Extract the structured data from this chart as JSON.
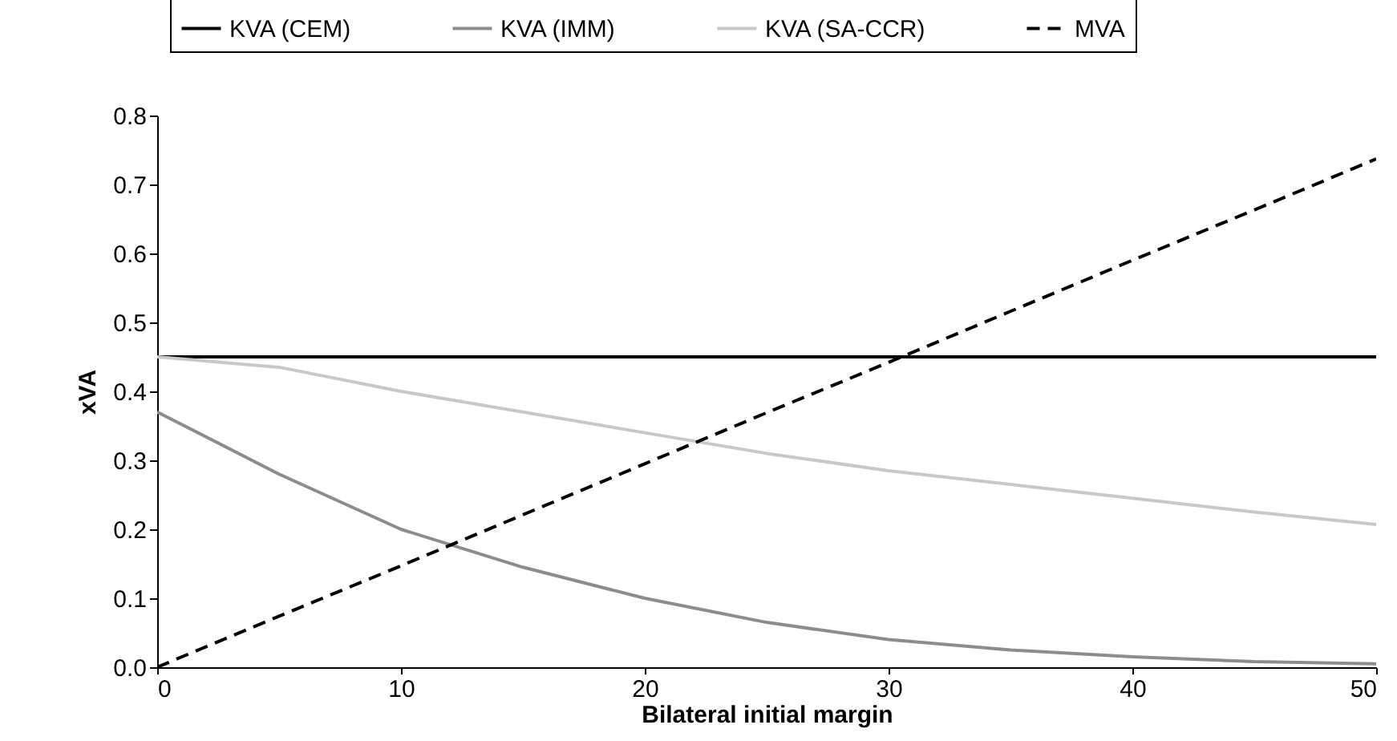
{
  "chart_data": {
    "type": "line",
    "xlabel": "Bilateral initial margin",
    "ylabel": "xVA",
    "x": [
      0,
      5,
      10,
      15,
      20,
      25,
      30,
      35,
      40,
      45,
      50
    ],
    "series": [
      {
        "name": "KVA (CEM)",
        "color": "#000000",
        "line_style": "solid",
        "values": [
          0.45,
          0.45,
          0.45,
          0.45,
          0.45,
          0.45,
          0.45,
          0.45,
          0.45,
          0.45,
          0.45
        ]
      },
      {
        "name": "KVA (IMM)",
        "color": "#8c8c8c",
        "line_style": "solid",
        "values": [
          0.37,
          0.28,
          0.2,
          0.145,
          0.1,
          0.065,
          0.04,
          0.025,
          0.015,
          0.008,
          0.005
        ]
      },
      {
        "name": "KVA (SA-CCR)",
        "color": "#c8c8c8",
        "line_style": "solid",
        "values": [
          0.45,
          0.435,
          0.4,
          0.37,
          0.34,
          0.31,
          0.285,
          0.265,
          0.245,
          0.225,
          0.207
        ]
      },
      {
        "name": "MVA",
        "color": "#000000",
        "line_style": "dashed",
        "values": [
          0,
          0.074,
          0.147,
          0.221,
          0.295,
          0.369,
          0.442,
          0.516,
          0.59,
          0.663,
          0.737
        ]
      }
    ],
    "xlim": [
      0,
      50
    ],
    "xticks": [
      0,
      10,
      20,
      30,
      40,
      50
    ],
    "ylim": [
      0,
      0.8
    ],
    "yticks": [
      {
        "value": 0,
        "label": "0.0"
      },
      0.1,
      0.2,
      0.3,
      0.4,
      0.5,
      0.6,
      0.7,
      0.8
    ],
    "legend": "top",
    "grid": false,
    "marker": "none"
  }
}
